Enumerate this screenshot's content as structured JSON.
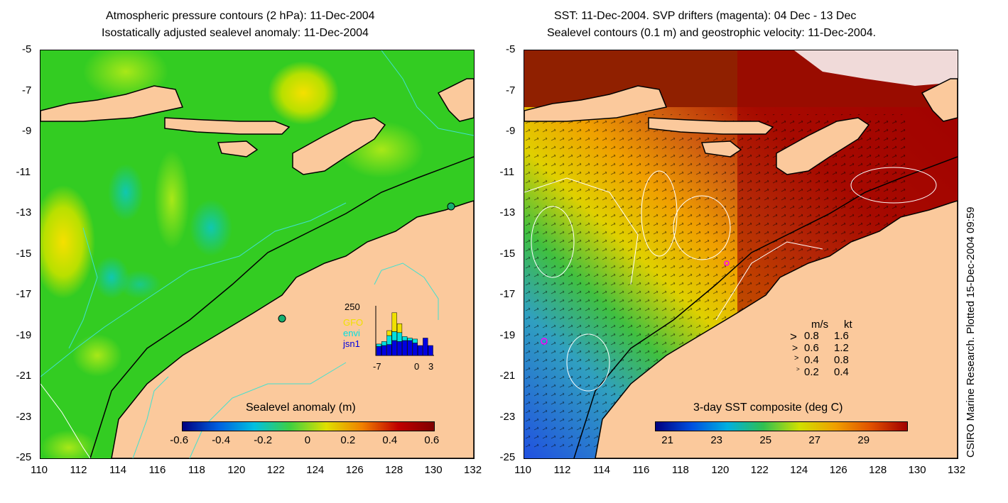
{
  "left_panel": {
    "title_line1": "Atmospheric pressure contours (2 hPa): 11-Dec-2004",
    "title_line2": "Isostatically adjusted sealevel anomaly: 11-Dec-2004",
    "colorbar_title": "Sealevel anomaly (m)",
    "colorbar_ticks": [
      "-0.6",
      "-0.4",
      "-0.2",
      "0",
      "0.2",
      "0.4",
      "0.6"
    ],
    "inset": {
      "ymax_label": "250",
      "legend": [
        {
          "label": "GFO",
          "color": "#f0e000"
        },
        {
          "label": "envi",
          "color": "#00e0e0"
        },
        {
          "label": "jsn1",
          "color": "#0000e0"
        }
      ],
      "x_labels": [
        "-7",
        "0",
        "3"
      ],
      "bars": [
        {
          "jsn1": 0.18,
          "envi": 0.05,
          "gfo": 0.0
        },
        {
          "jsn1": 0.2,
          "envi": 0.08,
          "gfo": 0.0
        },
        {
          "jsn1": 0.22,
          "envi": 0.18,
          "gfo": 0.1
        },
        {
          "jsn1": 0.3,
          "envi": 0.18,
          "gfo": 0.38
        },
        {
          "jsn1": 0.28,
          "envi": 0.18,
          "gfo": 0.18
        },
        {
          "jsn1": 0.3,
          "envi": 0.08,
          "gfo": 0.0
        },
        {
          "jsn1": 0.3,
          "envi": 0.05,
          "gfo": 0.0
        },
        {
          "jsn1": 0.25,
          "envi": 0.08,
          "gfo": 0.0
        },
        {
          "jsn1": 0.2,
          "envi": 0.0,
          "gfo": 0.0
        },
        {
          "jsn1": 0.35,
          "envi": 0.0,
          "gfo": 0.0
        },
        {
          "jsn1": 0.2,
          "envi": 0.0,
          "gfo": 0.0
        }
      ]
    }
  },
  "right_panel": {
    "title_line1": "SST: 11-Dec-2004. SVP drifters (magenta): 04 Dec - 13 Dec",
    "title_line2": "Sealevel contours (0.1 m) and geostrophic velocity: 11-Dec-2004.",
    "colorbar_title": "3-day SST composite (deg C)",
    "colorbar_ticks": [
      "21",
      "23",
      "25",
      "27",
      "29"
    ],
    "velocity_legend": {
      "header_ms": "m/s",
      "header_kt": "kt",
      "rows": [
        {
          "ms": "0.8",
          "kt": "1.6"
        },
        {
          "ms": "0.6",
          "kt": "1.2"
        },
        {
          "ms": "0.4",
          "kt": "0.8"
        },
        {
          "ms": "0.2",
          "kt": "0.4"
        }
      ]
    }
  },
  "axes": {
    "lat_labels": [
      "-5",
      "-7",
      "-9",
      "-11",
      "-13",
      "-15",
      "-17",
      "-19",
      "-21",
      "-23",
      "-25"
    ],
    "lon_labels": [
      "110",
      "112",
      "114",
      "116",
      "118",
      "120",
      "122",
      "124",
      "126",
      "128",
      "130",
      "132"
    ]
  },
  "credit": "CSIRO Marine Research. Plotted 15-Dec-2004 09:59",
  "colors": {
    "land": "#fbc99c",
    "ocean_anomaly": "#33cc22",
    "sst_warm": "#a00000",
    "sst_cool": "#2255dd",
    "contour_cyan": "#40e0d0"
  }
}
